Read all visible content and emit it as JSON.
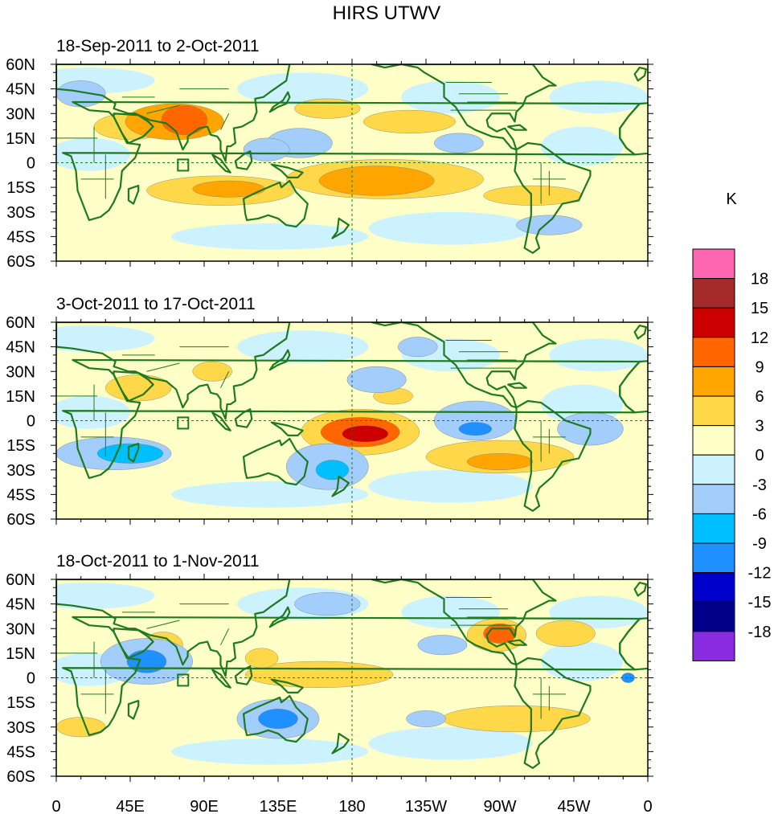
{
  "title": "HIRS UTWV",
  "units": "K",
  "panels": [
    {
      "title": "18-Sep-2011 to 2-Oct-2011",
      "blobs": [
        {
          "lon": 78,
          "lat": 26,
          "rx": 14,
          "ry": 9,
          "v": 9
        },
        {
          "lon": 72,
          "lat": 25,
          "rx": 30,
          "ry": 11,
          "v": 6
        },
        {
          "lon": 45,
          "lat": 22,
          "rx": 22,
          "ry": 8,
          "v": 3
        },
        {
          "lon": 105,
          "lat": -16,
          "rx": 22,
          "ry": 5,
          "v": 6
        },
        {
          "lon": 100,
          "lat": -17,
          "rx": 45,
          "ry": 9,
          "v": 3
        },
        {
          "lon": 195,
          "lat": -11,
          "rx": 35,
          "ry": 9,
          "v": 6
        },
        {
          "lon": 200,
          "lat": -10,
          "rx": 60,
          "ry": 12,
          "v": 3
        },
        {
          "lon": 290,
          "lat": -20,
          "rx": 30,
          "ry": 6,
          "v": 3
        },
        {
          "lon": 215,
          "lat": 25,
          "rx": 28,
          "ry": 7,
          "v": 3
        },
        {
          "lon": 165,
          "lat": 33,
          "rx": 20,
          "ry": 6,
          "v": 3
        },
        {
          "lon": 148,
          "lat": 12,
          "rx": 20,
          "ry": 9,
          "v": -3
        },
        {
          "lon": 128,
          "lat": 8,
          "rx": 14,
          "ry": 7,
          "v": -3
        },
        {
          "lon": 245,
          "lat": 12,
          "rx": 15,
          "ry": 6,
          "v": -3
        },
        {
          "lon": 15,
          "lat": 42,
          "rx": 15,
          "ry": 8,
          "v": -3
        },
        {
          "lon": 300,
          "lat": -38,
          "rx": 20,
          "ry": 6,
          "v": -3
        }
      ]
    },
    {
      "title": "3-Oct-2011 to 17-Oct-2011",
      "blobs": [
        {
          "lon": 188,
          "lat": -8,
          "rx": 14,
          "ry": 5,
          "v": 12
        },
        {
          "lon": 185,
          "lat": -7,
          "rx": 24,
          "ry": 9,
          "v": 9
        },
        {
          "lon": 185,
          "lat": -7,
          "rx": 36,
          "ry": 14,
          "v": 3
        },
        {
          "lon": 270,
          "lat": -25,
          "rx": 20,
          "ry": 5,
          "v": 6
        },
        {
          "lon": 270,
          "lat": -22,
          "rx": 45,
          "ry": 10,
          "v": 3
        },
        {
          "lon": 50,
          "lat": 20,
          "rx": 20,
          "ry": 8,
          "v": 3
        },
        {
          "lon": 95,
          "lat": 30,
          "rx": 12,
          "ry": 6,
          "v": 3
        },
        {
          "lon": 205,
          "lat": 15,
          "rx": 12,
          "ry": 5,
          "v": 3
        },
        {
          "lon": 255,
          "lat": -5,
          "rx": 10,
          "ry": 4,
          "v": -9
        },
        {
          "lon": 255,
          "lat": 0,
          "rx": 25,
          "ry": 12,
          "v": -3
        },
        {
          "lon": 45,
          "lat": -20,
          "rx": 20,
          "ry": 6,
          "v": -6
        },
        {
          "lon": 35,
          "lat": -20,
          "rx": 35,
          "ry": 10,
          "v": -3
        },
        {
          "lon": 168,
          "lat": -30,
          "rx": 10,
          "ry": 6,
          "v": -6
        },
        {
          "lon": 165,
          "lat": -28,
          "rx": 25,
          "ry": 14,
          "v": -3
        },
        {
          "lon": 195,
          "lat": 25,
          "rx": 18,
          "ry": 8,
          "v": -3
        },
        {
          "lon": 220,
          "lat": 45,
          "rx": 12,
          "ry": 6,
          "v": -3
        },
        {
          "lon": 325,
          "lat": -5,
          "rx": 20,
          "ry": 10,
          "v": -3
        }
      ]
    },
    {
      "title": "18-Oct-2011 to 1-Nov-2011",
      "blobs": [
        {
          "lon": 270,
          "lat": 27,
          "rx": 10,
          "ry": 6,
          "v": 9
        },
        {
          "lon": 268,
          "lat": 26,
          "rx": 18,
          "ry": 10,
          "v": 3
        },
        {
          "lon": 310,
          "lat": 27,
          "rx": 18,
          "ry": 8,
          "v": 3
        },
        {
          "lon": 160,
          "lat": 2,
          "rx": 45,
          "ry": 8,
          "v": 3
        },
        {
          "lon": 125,
          "lat": 12,
          "rx": 10,
          "ry": 6,
          "v": 3
        },
        {
          "lon": 15,
          "lat": -30,
          "rx": 15,
          "ry": 6,
          "v": 3
        },
        {
          "lon": 280,
          "lat": -25,
          "rx": 45,
          "ry": 8,
          "v": 3
        },
        {
          "lon": 65,
          "lat": 20,
          "rx": 12,
          "ry": 8,
          "v": 3
        },
        {
          "lon": 135,
          "lat": -25,
          "rx": 12,
          "ry": 6,
          "v": -9
        },
        {
          "lon": 135,
          "lat": -25,
          "rx": 25,
          "ry": 12,
          "v": -3
        },
        {
          "lon": 55,
          "lat": 10,
          "rx": 12,
          "ry": 7,
          "v": -9
        },
        {
          "lon": 55,
          "lat": 10,
          "rx": 28,
          "ry": 14,
          "v": -3
        },
        {
          "lon": 235,
          "lat": 20,
          "rx": 15,
          "ry": 6,
          "v": -3
        },
        {
          "lon": 165,
          "lat": 45,
          "rx": 20,
          "ry": 7,
          "v": -3
        },
        {
          "lon": 225,
          "lat": -25,
          "rx": 12,
          "ry": 5,
          "v": -3
        },
        {
          "lon": 348,
          "lat": 0,
          "rx": 4,
          "ry": 3,
          "v": -9
        }
      ]
    }
  ],
  "lat_ticks": [
    "60N",
    "45N",
    "30N",
    "15N",
    "0",
    "15S",
    "30S",
    "45S",
    "60S"
  ],
  "lon_ticks": [
    "0",
    "45E",
    "90E",
    "135E",
    "180",
    "135W",
    "90W",
    "45W",
    "0"
  ],
  "colorbar": {
    "labels": [
      "18",
      "15",
      "12",
      "9",
      "6",
      "3",
      "0",
      "-3",
      "-6",
      "-9",
      "-12",
      "-15",
      "-18"
    ],
    "colors": [
      "#ff66b2",
      "#a52a2a",
      "#cc0000",
      "#ff6600",
      "#ffa500",
      "#ffd84a",
      "#ffffc8",
      "#cdf2ff",
      "#a3cdfa",
      "#00bfff",
      "#1e90ff",
      "#0000cd",
      "#00008b",
      "#8a2be2"
    ],
    "levels": [
      18,
      15,
      12,
      9,
      6,
      3,
      0,
      -3,
      -6,
      -9,
      -12,
      -15,
      -18
    ]
  },
  "coast_color": "#1e7a1e"
}
